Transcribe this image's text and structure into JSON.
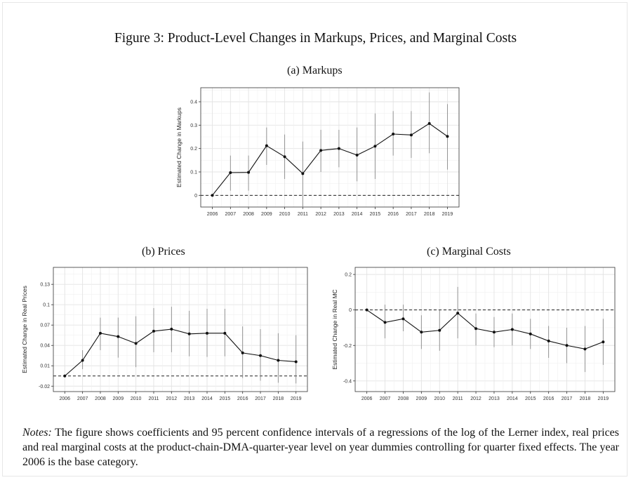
{
  "figure": {
    "title": "Figure 3: Product-Level Changes in Markups, Prices, and Marginal Costs",
    "notes_label": "Notes:",
    "notes_text": "The figure shows coefficients and 95 percent confidence intervals of a regressions of the log of the Lerner index, real prices and real marginal costs at the product-chain-DMA-quarter-year level on year dummies controlling for quarter fixed effects. The year 2006 is the base category."
  },
  "chart_data": [
    {
      "type": "line",
      "panel": "a",
      "title": "(a) Markups",
      "xlabel": "",
      "ylabel": "Estimated Change in Markups",
      "x": [
        "2006",
        "2007",
        "2008",
        "2009",
        "2010",
        "2011",
        "2012",
        "2013",
        "2014",
        "2015",
        "2016",
        "2017",
        "2018",
        "2019"
      ],
      "values": [
        0.0,
        0.097,
        0.098,
        0.212,
        0.165,
        0.093,
        0.192,
        0.2,
        0.172,
        0.21,
        0.262,
        0.258,
        0.307,
        0.252
      ],
      "ci_low": [
        0.0,
        0.02,
        0.02,
        0.13,
        0.07,
        -0.05,
        0.1,
        0.12,
        0.06,
        0.07,
        0.17,
        0.16,
        0.18,
        0.11
      ],
      "ci_high": [
        0.0,
        0.17,
        0.17,
        0.29,
        0.26,
        0.23,
        0.28,
        0.28,
        0.29,
        0.35,
        0.36,
        0.36,
        0.44,
        0.39
      ],
      "yticks": [
        0,
        0.1,
        0.2,
        0.3,
        0.4
      ],
      "ytick_labels": [
        "0",
        "0.1",
        "0.2",
        "0.3",
        "0.4"
      ],
      "ylim": [
        -0.05,
        0.46
      ],
      "reference_line": 0,
      "grid": true
    },
    {
      "type": "line",
      "panel": "b",
      "title": "(b) Prices",
      "xlabel": "",
      "ylabel": "Estimated Change in Real Prices",
      "x": [
        "2006",
        "2007",
        "2008",
        "2009",
        "2010",
        "2011",
        "2012",
        "2013",
        "2014",
        "2015",
        "2016",
        "2017",
        "2018",
        "2019"
      ],
      "values": [
        -0.005,
        0.018,
        0.058,
        0.053,
        0.043,
        0.061,
        0.064,
        0.057,
        0.058,
        0.058,
        0.029,
        0.025,
        0.018,
        0.016
      ],
      "ci_low": [
        -0.005,
        0.005,
        0.033,
        0.022,
        0.008,
        0.03,
        0.03,
        0.024,
        0.023,
        0.024,
        -0.008,
        -0.012,
        -0.015,
        -0.016
      ],
      "ci_high": [
        -0.005,
        0.033,
        0.081,
        0.081,
        0.083,
        0.095,
        0.097,
        0.091,
        0.094,
        0.094,
        0.068,
        0.064,
        0.058,
        0.055
      ],
      "yticks": [
        -0.02,
        0.01,
        0.04,
        0.07,
        0.1,
        0.13
      ],
      "ytick_labels": [
        "-0.02",
        "0.01",
        "0.04",
        "0.07",
        "0.1",
        "0.13"
      ],
      "ylim": [
        -0.028,
        0.155
      ],
      "reference_line": -0.005,
      "grid": true
    },
    {
      "type": "line",
      "panel": "c",
      "title": "(c) Marginal Costs",
      "xlabel": "",
      "ylabel": "Estimated Change in Real MC",
      "x": [
        "2006",
        "2007",
        "2008",
        "2009",
        "2010",
        "2011",
        "2012",
        "2013",
        "2014",
        "2015",
        "2016",
        "2017",
        "2018",
        "2019"
      ],
      "values": [
        0.0,
        -0.07,
        -0.05,
        -0.125,
        -0.115,
        -0.018,
        -0.105,
        -0.125,
        -0.11,
        -0.135,
        -0.175,
        -0.2,
        -0.22,
        -0.18
      ],
      "ci_low": [
        0.0,
        -0.16,
        -0.12,
        -0.22,
        -0.23,
        -0.16,
        -0.2,
        -0.21,
        -0.2,
        -0.22,
        -0.27,
        -0.3,
        -0.35,
        -0.31
      ],
      "ci_high": [
        0.0,
        0.03,
        0.03,
        -0.03,
        0.0,
        0.13,
        -0.02,
        -0.04,
        -0.02,
        -0.05,
        -0.09,
        -0.1,
        -0.09,
        -0.05
      ],
      "yticks": [
        -0.4,
        -0.2,
        0,
        0.2
      ],
      "ytick_labels": [
        "-0.4",
        "-0.2",
        "0",
        "0.2"
      ],
      "ylim": [
        -0.46,
        0.24
      ],
      "reference_line": 0,
      "grid": true
    }
  ]
}
